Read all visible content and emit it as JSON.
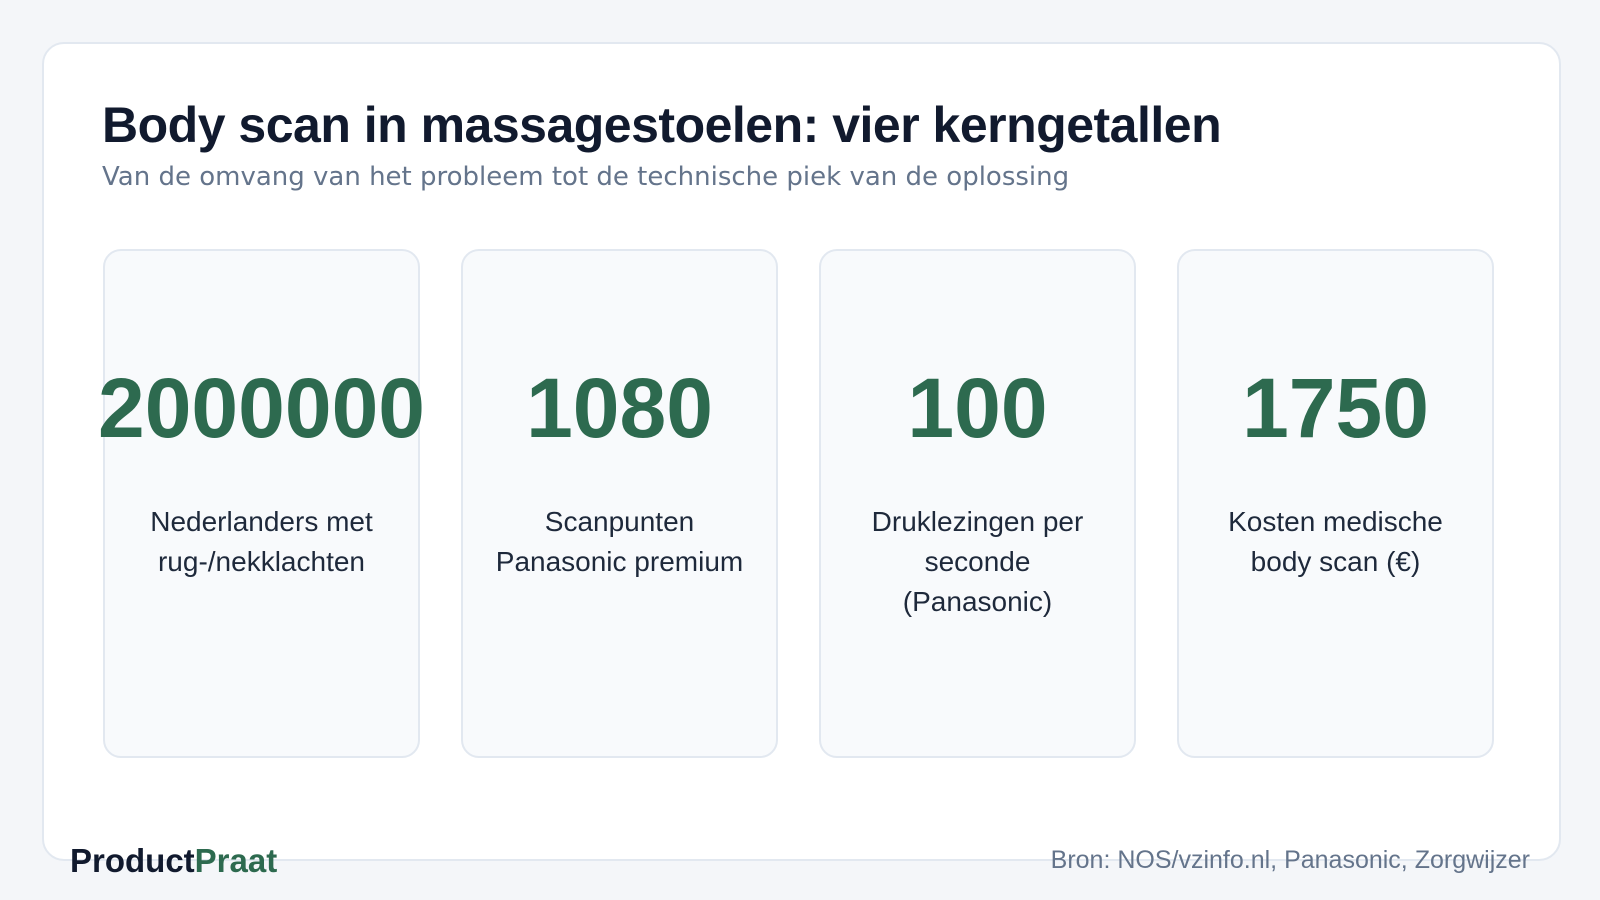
{
  "header": {
    "title": "Body scan in massagestoelen: vier kerngetallen",
    "subtitle": "Van de omvang van het probleem tot de technische piek van de oplossing"
  },
  "stats": [
    {
      "value": "2000000",
      "label": "Nederlanders met rug-/nekklachten"
    },
    {
      "value": "1080",
      "label": "Scanpunten Panasonic premium"
    },
    {
      "value": "100",
      "label": "Druklezingen per seconde (Panasonic)"
    },
    {
      "value": "1750",
      "label": "Kosten medische body scan (€)"
    }
  ],
  "footer": {
    "brand": {
      "dark": "Product",
      "accent": "Praat"
    },
    "source": "Bron: NOS/vzinfo.nl, Panasonic, Zorgwijzer"
  }
}
